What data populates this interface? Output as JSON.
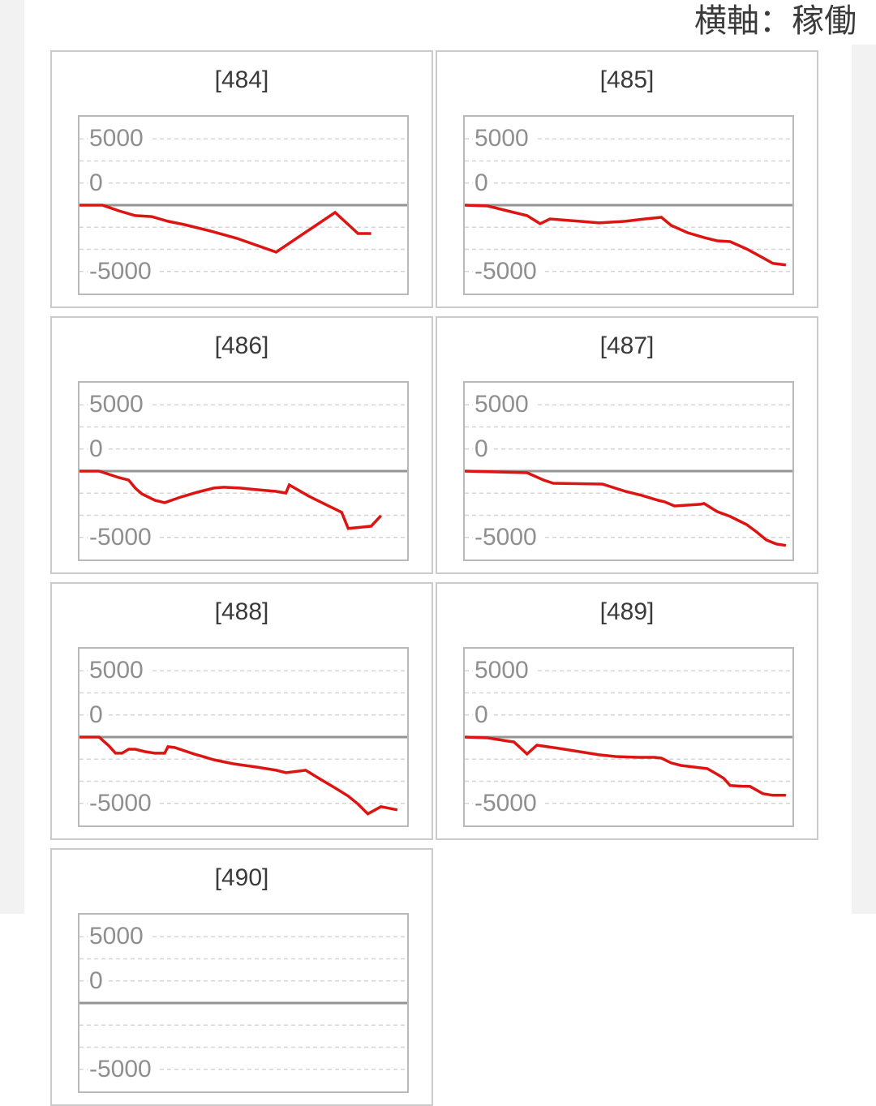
{
  "page": {
    "axis_note": "横軸：稼働",
    "colors": {
      "accent_red": "#dc1412",
      "card_border": "#cbcbcb",
      "plot_border": "#b9b9b9",
      "grid_dashed": "#d6d6d6",
      "zero_line": "#949494",
      "tick_label": "#8f8f8f",
      "title_text": "#3a3a3a",
      "gutter": "#f2f2f2"
    }
  },
  "chart_data": {
    "type": "line",
    "layout": "2-column grid of sparkline cards",
    "x_axis_label": "稼働",
    "y_ticks": [
      "5000",
      "0",
      "-5000"
    ],
    "y_tick_values": [
      5000,
      0,
      -5000
    ],
    "y_scale_note": "solid dark line = 0 axis at vertical center; dashed gridlines every 1/8 of plot height; labels sit on gridlines 1, 3 and 7",
    "grid_on": true,
    "legend": "none",
    "series_color": "#dc1412",
    "charts": [
      {
        "title": "[484]",
        "machine_number": "484",
        "points": [
          [
            0.0,
            0
          ],
          [
            0.07,
            0
          ],
          [
            0.12,
            -430
          ],
          [
            0.17,
            -790
          ],
          [
            0.22,
            -860
          ],
          [
            0.27,
            -1220
          ],
          [
            0.32,
            -1470
          ],
          [
            0.4,
            -1960
          ],
          [
            0.48,
            -2500
          ],
          [
            0.6,
            -3540
          ],
          [
            0.78,
            -550
          ],
          [
            0.85,
            -2140
          ],
          [
            0.89,
            -2140
          ]
        ]
      },
      {
        "title": "[485]",
        "machine_number": "485",
        "points": [
          [
            0.0,
            0
          ],
          [
            0.07,
            -60
          ],
          [
            0.15,
            -550
          ],
          [
            0.19,
            -790
          ],
          [
            0.23,
            -1400
          ],
          [
            0.26,
            -1040
          ],
          [
            0.29,
            -1100
          ],
          [
            0.35,
            -1220
          ],
          [
            0.41,
            -1340
          ],
          [
            0.49,
            -1220
          ],
          [
            0.55,
            -1040
          ],
          [
            0.6,
            -920
          ],
          [
            0.63,
            -1530
          ],
          [
            0.68,
            -2080
          ],
          [
            0.73,
            -2440
          ],
          [
            0.77,
            -2690
          ],
          [
            0.81,
            -2750
          ],
          [
            0.86,
            -3300
          ],
          [
            0.91,
            -3970
          ],
          [
            0.94,
            -4390
          ],
          [
            0.98,
            -4510
          ]
        ]
      },
      {
        "title": "[486]",
        "machine_number": "486",
        "points": [
          [
            0.0,
            0
          ],
          [
            0.06,
            0
          ],
          [
            0.12,
            -490
          ],
          [
            0.15,
            -670
          ],
          [
            0.17,
            -1280
          ],
          [
            0.19,
            -1710
          ],
          [
            0.23,
            -2200
          ],
          [
            0.26,
            -2380
          ],
          [
            0.31,
            -1950
          ],
          [
            0.36,
            -1590
          ],
          [
            0.41,
            -1280
          ],
          [
            0.44,
            -1220
          ],
          [
            0.49,
            -1280
          ],
          [
            0.54,
            -1400
          ],
          [
            0.6,
            -1530
          ],
          [
            0.63,
            -1650
          ],
          [
            0.64,
            -1040
          ],
          [
            0.7,
            -1890
          ],
          [
            0.75,
            -2500
          ],
          [
            0.8,
            -3110
          ],
          [
            0.82,
            -4330
          ],
          [
            0.87,
            -4210
          ],
          [
            0.89,
            -4150
          ],
          [
            0.92,
            -3360
          ]
        ]
      },
      {
        "title": "[487]",
        "machine_number": "487",
        "points": [
          [
            0.0,
            0
          ],
          [
            0.19,
            -120
          ],
          [
            0.24,
            -670
          ],
          [
            0.27,
            -920
          ],
          [
            0.42,
            -980
          ],
          [
            0.49,
            -1530
          ],
          [
            0.54,
            -1830
          ],
          [
            0.59,
            -2200
          ],
          [
            0.61,
            -2320
          ],
          [
            0.64,
            -2630
          ],
          [
            0.72,
            -2500
          ],
          [
            0.73,
            -2440
          ],
          [
            0.77,
            -3050
          ],
          [
            0.81,
            -3420
          ],
          [
            0.86,
            -4030
          ],
          [
            0.89,
            -4580
          ],
          [
            0.92,
            -5190
          ],
          [
            0.95,
            -5490
          ],
          [
            0.98,
            -5610
          ]
        ]
      },
      {
        "title": "[488]",
        "machine_number": "488",
        "points": [
          [
            0.0,
            0
          ],
          [
            0.06,
            0
          ],
          [
            0.09,
            -670
          ],
          [
            0.11,
            -1220
          ],
          [
            0.13,
            -1220
          ],
          [
            0.15,
            -920
          ],
          [
            0.17,
            -920
          ],
          [
            0.2,
            -1100
          ],
          [
            0.23,
            -1220
          ],
          [
            0.26,
            -1220
          ],
          [
            0.27,
            -730
          ],
          [
            0.29,
            -790
          ],
          [
            0.35,
            -1280
          ],
          [
            0.41,
            -1710
          ],
          [
            0.47,
            -2020
          ],
          [
            0.54,
            -2260
          ],
          [
            0.6,
            -2500
          ],
          [
            0.63,
            -2690
          ],
          [
            0.69,
            -2500
          ],
          [
            0.73,
            -3110
          ],
          [
            0.78,
            -3840
          ],
          [
            0.82,
            -4450
          ],
          [
            0.85,
            -5060
          ],
          [
            0.88,
            -5790
          ],
          [
            0.92,
            -5250
          ],
          [
            0.97,
            -5490
          ]
        ]
      },
      {
        "title": "[489]",
        "machine_number": "489",
        "points": [
          [
            0.0,
            0
          ],
          [
            0.07,
            -60
          ],
          [
            0.13,
            -300
          ],
          [
            0.15,
            -370
          ],
          [
            0.19,
            -1280
          ],
          [
            0.22,
            -610
          ],
          [
            0.29,
            -860
          ],
          [
            0.35,
            -1100
          ],
          [
            0.41,
            -1340
          ],
          [
            0.46,
            -1470
          ],
          [
            0.53,
            -1530
          ],
          [
            0.58,
            -1530
          ],
          [
            0.6,
            -1590
          ],
          [
            0.63,
            -1950
          ],
          [
            0.66,
            -2140
          ],
          [
            0.7,
            -2260
          ],
          [
            0.74,
            -2380
          ],
          [
            0.77,
            -2810
          ],
          [
            0.79,
            -3110
          ],
          [
            0.81,
            -3660
          ],
          [
            0.85,
            -3720
          ],
          [
            0.87,
            -3720
          ],
          [
            0.91,
            -4270
          ],
          [
            0.94,
            -4390
          ],
          [
            0.98,
            -4390
          ]
        ]
      },
      {
        "title": "[490]",
        "machine_number": "490",
        "clipped": true,
        "points": []
      }
    ]
  }
}
